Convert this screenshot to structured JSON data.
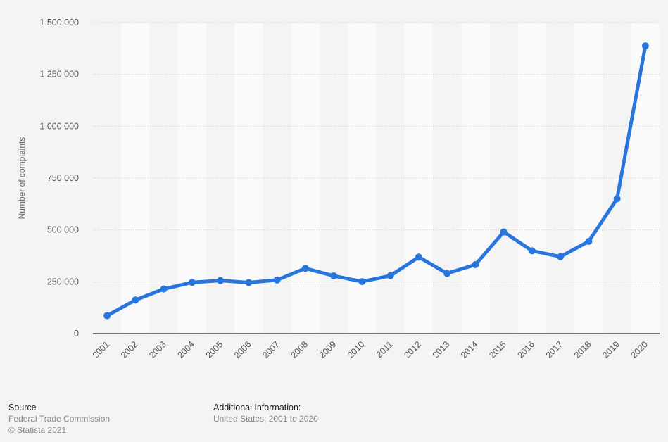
{
  "chart_data": {
    "type": "line",
    "title": "",
    "xlabel": "",
    "ylabel": "Number of complaints",
    "ylim": [
      0,
      1500000
    ],
    "yticks": [
      0,
      250000,
      500000,
      750000,
      1000000,
      1250000,
      1500000
    ],
    "ytick_labels": [
      "0",
      "250 000",
      "500 000",
      "750 000",
      "1 000 000",
      "1 250 000",
      "1 500 000"
    ],
    "grid": true,
    "categories": [
      "2001",
      "2002",
      "2003",
      "2004",
      "2005",
      "2006",
      "2007",
      "2008",
      "2009",
      "2010",
      "2011",
      "2012",
      "2013",
      "2014",
      "2015",
      "2016",
      "2017",
      "2018",
      "2019",
      "2020"
    ],
    "series": [
      {
        "name": "Number of complaints",
        "color": "#2876dd",
        "values": [
          86250,
          161977,
          215093,
          246909,
          255687,
          246035,
          258427,
          314587,
          278360,
          250854,
          279156,
          369145,
          290102,
          332646,
          490220,
          399225,
          371061,
          444602,
          650572,
          1387615
        ]
      }
    ]
  },
  "footer": {
    "source_heading": "Source",
    "source_text": "Federal Trade Commission",
    "copyright": "© Statista 2021",
    "info_heading": "Additional Information:",
    "info_text": "United States; 2001 to 2020"
  }
}
